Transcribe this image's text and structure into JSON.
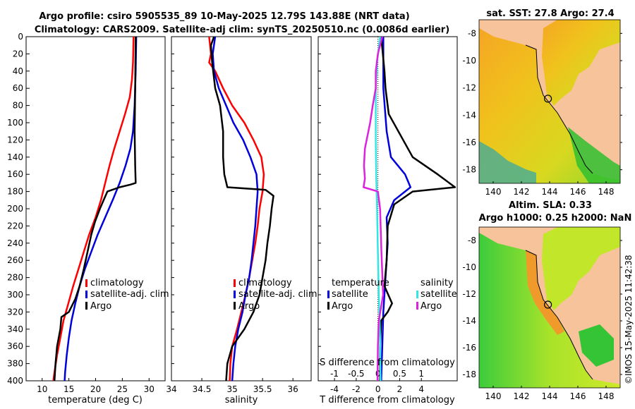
{
  "title": {
    "line1": "Argo profile: csiro 5905535_89 10-May-2025 12.79S 143.88E (NRT data)",
    "line2": "Climatology: CARS2009. Satellite-adj clim: synTS_20250510.nc (0.0086d earlier)"
  },
  "colors": {
    "climatology": "#ff0000",
    "satellite": "#0000dd",
    "argo": "#000000",
    "sal_sat": "#33e6e6",
    "sal_argo": "#dd22dd"
  },
  "chart_data": [
    {
      "type": "line",
      "name": "temperature",
      "xlabel": "temperature (deg C)",
      "ylabel": "",
      "xlim": [
        7,
        33
      ],
      "ylim": [
        400,
        0
      ],
      "xticks": [
        10,
        15,
        20,
        25,
        30
      ],
      "yticks": [
        0,
        20,
        40,
        60,
        80,
        100,
        120,
        140,
        160,
        180,
        200,
        220,
        240,
        260,
        280,
        300,
        320,
        340,
        360,
        380,
        400
      ],
      "legend": [
        "climatology",
        "satellite-adj. clim",
        "Argo"
      ],
      "series": [
        {
          "name": "climatology",
          "color": "#ff0000",
          "points": [
            [
              27.1,
              0
            ],
            [
              27.0,
              30
            ],
            [
              26.8,
              50
            ],
            [
              26.4,
              70
            ],
            [
              25.5,
              90
            ],
            [
              24.5,
              110
            ],
            [
              23.5,
              130
            ],
            [
              22.6,
              150
            ],
            [
              21.8,
              170
            ],
            [
              21.0,
              190
            ],
            [
              20.0,
              210
            ],
            [
              18.8,
              230
            ],
            [
              17.8,
              250
            ],
            [
              16.8,
              270
            ],
            [
              15.8,
              290
            ],
            [
              14.9,
              310
            ],
            [
              14.0,
              330
            ],
            [
              13.4,
              350
            ],
            [
              12.8,
              370
            ],
            [
              12.3,
              390
            ],
            [
              12.1,
              400
            ]
          ]
        },
        {
          "name": "satellite-adj. clim",
          "color": "#0000dd",
          "points": [
            [
              27.6,
              0
            ],
            [
              27.5,
              40
            ],
            [
              27.3,
              80
            ],
            [
              27.0,
              110
            ],
            [
              26.5,
              130
            ],
            [
              25.6,
              150
            ],
            [
              24.5,
              170
            ],
            [
              23.2,
              190
            ],
            [
              21.8,
              210
            ],
            [
              20.4,
              230
            ],
            [
              19.2,
              250
            ],
            [
              18.0,
              270
            ],
            [
              17.0,
              290
            ],
            [
              16.2,
              310
            ],
            [
              15.5,
              330
            ],
            [
              15.0,
              350
            ],
            [
              14.6,
              370
            ],
            [
              14.3,
              390
            ],
            [
              14.2,
              400
            ]
          ]
        },
        {
          "name": "Argo",
          "color": "#000000",
          "points": [
            [
              27.5,
              0
            ],
            [
              27.4,
              60
            ],
            [
              27.3,
              110
            ],
            [
              27.4,
              150
            ],
            [
              27.5,
              170
            ],
            [
              26.5,
              172
            ],
            [
              24.5,
              175
            ],
            [
              22.2,
              180
            ],
            [
              21.5,
              190
            ],
            [
              20.8,
              200
            ],
            [
              19.9,
              215
            ],
            [
              19.2,
              230
            ],
            [
              18.5,
              250
            ],
            [
              17.8,
              270
            ],
            [
              17.0,
              290
            ],
            [
              16.2,
              305
            ],
            [
              15.0,
              320
            ],
            [
              13.6,
              326
            ],
            [
              13.4,
              340
            ],
            [
              12.8,
              360
            ],
            [
              12.5,
              380
            ],
            [
              12.3,
              400
            ]
          ]
        }
      ]
    },
    {
      "type": "line",
      "name": "salinity",
      "xlabel": "salinity",
      "xlim": [
        34,
        36.3
      ],
      "ylim": [
        400,
        0
      ],
      "xticks": [
        34,
        34.5,
        35,
        35.5,
        36
      ],
      "legend": [
        "climatology",
        "satellite-adj. clim",
        "Argo"
      ],
      "series": [
        {
          "name": "climatology",
          "color": "#ff0000",
          "points": [
            [
              34.62,
              0
            ],
            [
              34.65,
              20
            ],
            [
              34.62,
              30
            ],
            [
              34.72,
              40
            ],
            [
              34.85,
              60
            ],
            [
              35.0,
              80
            ],
            [
              35.2,
              100
            ],
            [
              35.35,
              120
            ],
            [
              35.48,
              140
            ],
            [
              35.52,
              160
            ],
            [
              35.5,
              180
            ],
            [
              35.45,
              200
            ],
            [
              35.42,
              220
            ],
            [
              35.38,
              240
            ],
            [
              35.33,
              260
            ],
            [
              35.28,
              280
            ],
            [
              35.22,
              300
            ],
            [
              35.15,
              320
            ],
            [
              35.08,
              340
            ],
            [
              35.0,
              360
            ],
            [
              34.97,
              380
            ],
            [
              34.96,
              400
            ]
          ]
        },
        {
          "name": "satellite-adj. clim",
          "color": "#0000dd",
          "points": [
            [
              34.72,
              0
            ],
            [
              34.68,
              20
            ],
            [
              34.7,
              40
            ],
            [
              34.78,
              60
            ],
            [
              34.9,
              80
            ],
            [
              35.02,
              100
            ],
            [
              35.18,
              120
            ],
            [
              35.3,
              140
            ],
            [
              35.4,
              160
            ],
            [
              35.42,
              180
            ],
            [
              35.4,
              200
            ],
            [
              35.38,
              220
            ],
            [
              35.35,
              240
            ],
            [
              35.32,
              260
            ],
            [
              35.28,
              280
            ],
            [
              35.22,
              300
            ],
            [
              35.17,
              320
            ],
            [
              35.1,
              340
            ],
            [
              35.05,
              360
            ],
            [
              35.02,
              380
            ],
            [
              35.0,
              400
            ]
          ]
        },
        {
          "name": "Argo",
          "color": "#000000",
          "points": [
            [
              34.7,
              0
            ],
            [
              34.65,
              10
            ],
            [
              34.67,
              30
            ],
            [
              34.72,
              60
            ],
            [
              34.8,
              80
            ],
            [
              34.85,
              110
            ],
            [
              34.85,
              140
            ],
            [
              34.87,
              160
            ],
            [
              34.92,
              175
            ],
            [
              35.55,
              178
            ],
            [
              35.68,
              185
            ],
            [
              35.65,
              200
            ],
            [
              35.62,
              220
            ],
            [
              35.58,
              240
            ],
            [
              35.55,
              260
            ],
            [
              35.5,
              280
            ],
            [
              35.45,
              300
            ],
            [
              35.35,
              320
            ],
            [
              35.2,
              340
            ],
            [
              35.0,
              360
            ],
            [
              34.92,
              380
            ],
            [
              34.9,
              400
            ]
          ]
        }
      ]
    },
    {
      "type": "line",
      "name": "difference",
      "xlabel": "T difference from climatology",
      "xlabel_top": "S difference from climatology",
      "xlim": [
        -5.5,
        7.3
      ],
      "ylim": [
        400,
        0
      ],
      "xticks": [
        -4,
        -2,
        0,
        2,
        4
      ],
      "xticks_top": [
        -1,
        -0.5,
        0,
        0.5,
        1
      ],
      "legend_temperature": {
        "header": "temperature",
        "items": [
          "satellite",
          "Argo"
        ]
      },
      "legend_salinity": {
        "header": "salinity",
        "items": [
          "satellite",
          "Argo"
        ]
      },
      "series": [
        {
          "name": "T satellite",
          "color": "#0000dd",
          "points": [
            [
              0.5,
              0
            ],
            [
              0.5,
              60
            ],
            [
              0.8,
              110
            ],
            [
              1.2,
              140
            ],
            [
              2.5,
              160
            ],
            [
              3.0,
              175
            ],
            [
              1.5,
              190
            ],
            [
              0.8,
              210
            ],
            [
              0.9,
              240
            ],
            [
              0.7,
              280
            ],
            [
              0.5,
              320
            ],
            [
              0.4,
              360
            ],
            [
              0.3,
              400
            ]
          ]
        },
        {
          "name": "T Argo",
          "color": "#000000",
          "points": [
            [
              0.3,
              0
            ],
            [
              0.6,
              40
            ],
            [
              0.7,
              60
            ],
            [
              1.0,
              90
            ],
            [
              3.2,
              140
            ],
            [
              5.5,
              160
            ],
            [
              7.1,
              175
            ],
            [
              3.2,
              180
            ],
            [
              1.5,
              195
            ],
            [
              0.9,
              220
            ],
            [
              0.8,
              260
            ],
            [
              0.6,
              290
            ],
            [
              1.3,
              310
            ],
            [
              0.9,
              320
            ],
            [
              0.3,
              330
            ],
            [
              0.2,
              360
            ],
            [
              0.2,
              400
            ]
          ]
        },
        {
          "name": "S satellite",
          "color": "#33e6e6",
          "points": [
            [
              0.05,
              0
            ],
            [
              -0.02,
              30
            ],
            [
              -0.05,
              60
            ],
            [
              -0.05,
              120
            ],
            [
              -0.04,
              160
            ],
            [
              -0.02,
              200
            ],
            [
              0.0,
              250
            ],
            [
              0.02,
              300
            ],
            [
              0.05,
              350
            ],
            [
              0.06,
              400
            ]
          ]
        },
        {
          "name": "S Argo",
          "color": "#dd22dd",
          "points": [
            [
              0.1,
              0
            ],
            [
              0.0,
              20
            ],
            [
              -0.05,
              40
            ],
            [
              -0.05,
              60
            ],
            [
              -0.12,
              80
            ],
            [
              -0.18,
              100
            ],
            [
              -0.3,
              130
            ],
            [
              -0.32,
              150
            ],
            [
              -0.3,
              165
            ],
            [
              -0.33,
              175
            ],
            [
              0.0,
              180
            ],
            [
              0.05,
              200
            ],
            [
              0.08,
              250
            ],
            [
              0.12,
              300
            ],
            [
              0.02,
              330
            ],
            [
              0.0,
              360
            ],
            [
              -0.01,
              400
            ]
          ]
        }
      ]
    },
    {
      "type": "heatmap",
      "name": "sst-map",
      "title": "sat. SST: 27.8 Argo: 27.4",
      "xlim": [
        139,
        149
      ],
      "ylim": [
        -19,
        -7
      ],
      "xticks": [
        140,
        142,
        144,
        146,
        148
      ],
      "yticks": [
        -8,
        -10,
        -12,
        -14,
        -16,
        -18
      ],
      "marker": {
        "lon": 143.88,
        "lat": -12.79
      }
    },
    {
      "type": "heatmap",
      "name": "sla-map",
      "title": "Altim. SLA: 0.33",
      "subtitle": "Argo h1000: 0.25 h2000: NaN",
      "xlim": [
        139,
        149
      ],
      "ylim": [
        -19,
        -7
      ],
      "xticks": [
        140,
        142,
        144,
        146,
        148
      ],
      "yticks": [
        -8,
        -10,
        -12,
        -14,
        -16,
        -18
      ],
      "marker": {
        "lon": 143.88,
        "lat": -12.79
      }
    }
  ],
  "footer": "©IMOS 15-May-2025 11:42:38"
}
